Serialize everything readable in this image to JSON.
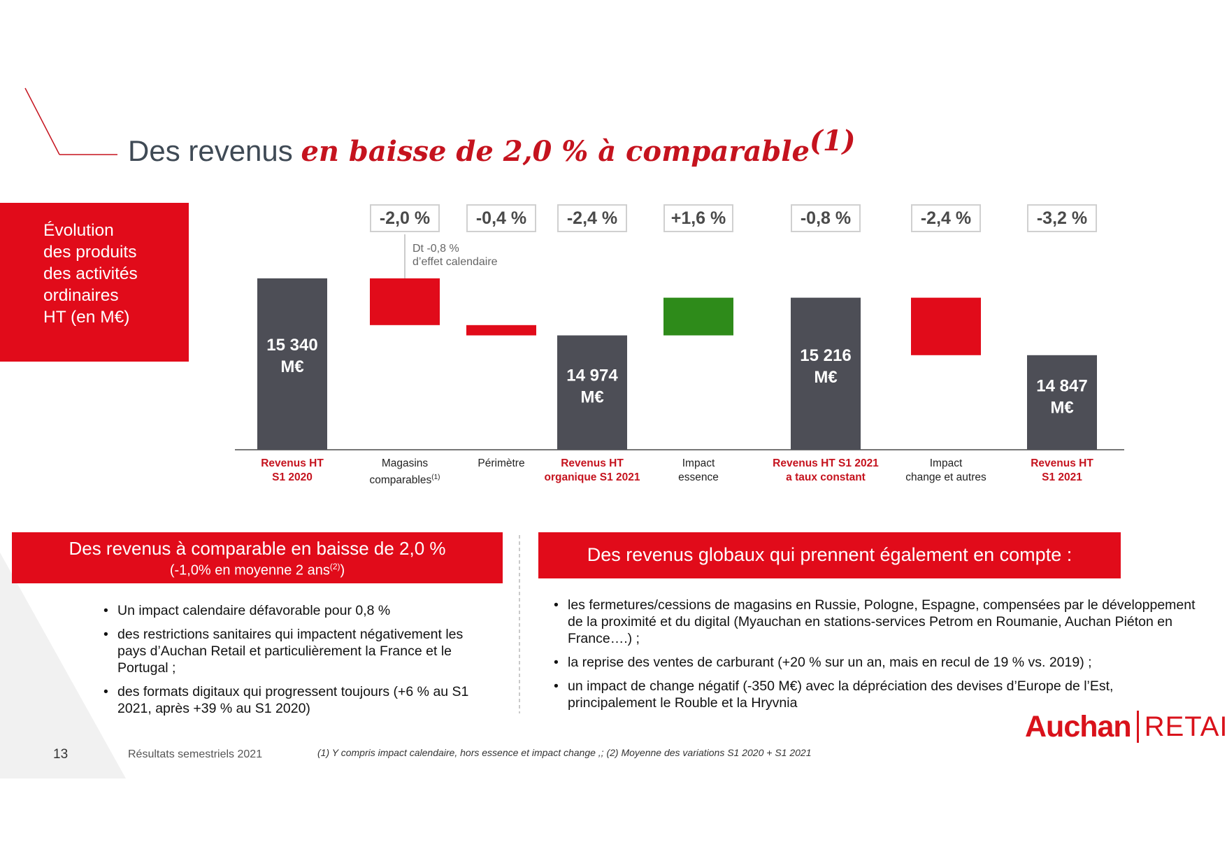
{
  "title": {
    "plain": "Des revenus ",
    "emphasis": "en baisse de 2,0 % à comparable",
    "sup": "(1)"
  },
  "legend": {
    "line1": "Évolution",
    "line2": "des produits",
    "line3": "des activités",
    "line4": "ordinaires",
    "line5": "HT (en M€)"
  },
  "note": {
    "line1": "Dt -0,8 %",
    "line2": "d’effet calendaire"
  },
  "chart_data": {
    "type": "bar",
    "subtype": "waterfall",
    "categories": [
      "Revenus HT S1 2020",
      "Magasins comparables(1)",
      "Périmètre",
      "Revenus HT organique S1 2021",
      "Impact essence",
      "Revenus HT S1 2021 a taux constant",
      "Impact change et autres",
      "Revenus HT S1 2021"
    ],
    "values": [
      15340,
      -300,
      -66,
      14974,
      242,
      15216,
      -369,
      14847
    ],
    "percent_labels": [
      "",
      "-2,0 %",
      "-0,4 %",
      "-2,4 %",
      "+1,6 %",
      "-0,8 %",
      "-2,4 %",
      "-3,2 %"
    ],
    "bar_value_labels": [
      {
        "line1": "15 340",
        "line2": "M€"
      },
      null,
      null,
      {
        "line1": "14 974",
        "line2": "M€"
      },
      null,
      {
        "line1": "15 216",
        "line2": "M€"
      },
      null,
      {
        "line1": "14 847",
        "line2": "M€"
      }
    ],
    "colors": {
      "total": "#4d4e56",
      "decrease": "#e10b1a",
      "increase": "#2e8b1a"
    }
  },
  "cats": [
    {
      "l1": "Revenus HT",
      "l2": "S1 2020"
    },
    {
      "l1": "Magasins",
      "l2": "comparables",
      "sup": "(1)"
    },
    {
      "l1": "Périmètre",
      "l2": ""
    },
    {
      "l1": "Revenus HT",
      "l2": "organique S1  2021"
    },
    {
      "l1": "Impact",
      "l2": "essence"
    },
    {
      "l1": "Revenus HT S1 2021",
      "l2": "a taux constant"
    },
    {
      "l1": "Impact",
      "l2": "change et autres"
    },
    {
      "l1": "Revenus HT",
      "l2": "S1 2021"
    }
  ],
  "left_panel": {
    "title": "Des revenus à comparable en baisse de 2,0 %",
    "subtitle": "(-1,0% en moyenne 2 ans",
    "subtitle_sup": "(2)",
    "subtitle_end": ")",
    "bullets": [
      "Un impact calendaire défavorable pour 0,8 %",
      "des restrictions sanitaires qui impactent négativement les pays d’Auchan Retail et particulièrement la France et le Portugal ;",
      "des formats digitaux qui progressent toujours (+6 % au S1 2021, après +39 % au S1 2020)"
    ]
  },
  "right_panel": {
    "title": "Des revenus globaux qui prennent également en compte :",
    "bullets": [
      "les fermetures/cessions de magasins en Russie, Pologne, Espagne, compensées par le développement de la proximité et du digital  (Myauchan en stations-services Petrom en Roumanie, Auchan Piéton en France….) ;",
      "la reprise des ventes de carburant (+20 % sur un an, mais en recul de 19 % vs. 2019) ;",
      "un impact de change négatif (-350 M€) avec la dépréciation des devises d’Europe de l’Est, principalement le Rouble et la Hryvnia"
    ]
  },
  "footer": {
    "page": "13",
    "doc_title": "Résultats semestriels 2021",
    "footnote": "(1) Y compris impact calendaire, hors essence et impact change ,; (2) Moyenne des variations S1 2020 + S1 2021"
  },
  "logo": {
    "brand": "Auchan",
    "sub": "RETAIL"
  },
  "accent_color": "#e10b1a"
}
